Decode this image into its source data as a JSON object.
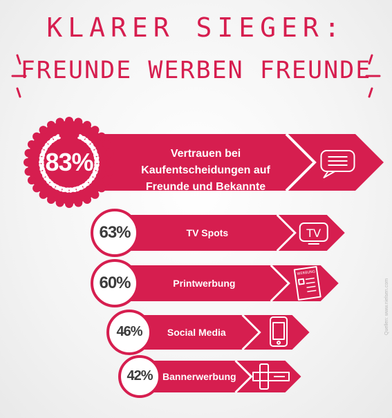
{
  "title": {
    "line1": "KLARER SIEGER:",
    "line2": "FREUNDE WERBEN FREUNDE"
  },
  "colors": {
    "accent": "#d61e4f",
    "background": "#f4f4f4",
    "text_dark": "#3b3b3b"
  },
  "chart_data": {
    "type": "bar",
    "categories": [
      "Vertrauen bei Kaufentscheidungen auf Freunde und Bekannte",
      "TV Spots",
      "Printwerbung",
      "Social Media",
      "Bannerwerbung"
    ],
    "values": [
      83,
      63,
      60,
      46,
      42
    ],
    "value_labels": [
      "83%",
      "63%",
      "60%",
      "46%",
      "42%"
    ],
    "icons": [
      "speech-bubble-icon",
      "tv-icon",
      "newspaper-icon",
      "smartphone-icon",
      "banner-icon"
    ],
    "icon_text": {
      "tv": "TV",
      "newspaper": "WERBUNG"
    },
    "annotations": [
      "Quellen: www.nielsen.com"
    ]
  },
  "source": "Quellen: www.nielsen.com"
}
